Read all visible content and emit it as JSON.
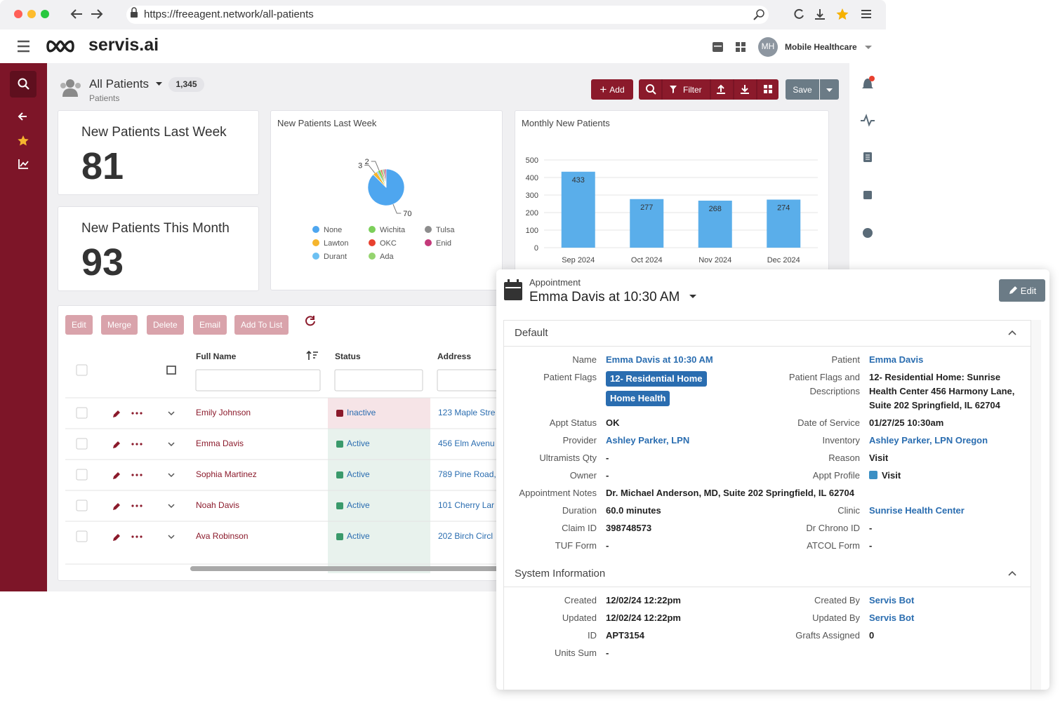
{
  "browser": {
    "url": "https://freeagent.network/all-patients"
  },
  "app": {
    "logo": "servis.ai",
    "avatar": "MH",
    "org": "Mobile Healthcare"
  },
  "header": {
    "title": "All Patients",
    "count": "1,345",
    "subtitle": "Patients"
  },
  "toolbar": {
    "add": "Add",
    "filter": "Filter",
    "save": "Save"
  },
  "cards": [
    {
      "title": "New Patients Last Week",
      "value": "81"
    },
    {
      "title": "New Patients This Month",
      "value": "93"
    }
  ],
  "chart_data": [
    {
      "type": "pie",
      "title": "New Patients Last Week",
      "categories": [
        "None",
        "Lawton",
        "Durant",
        "Wichita",
        "OKC",
        "Ada",
        "Tulsa",
        "Enid"
      ],
      "values": [
        70,
        3,
        1,
        2,
        1,
        1,
        1,
        1
      ],
      "colors": [
        "#4ea6ef",
        "#f5b52e",
        "#6cc0f2",
        "#7ccf5a",
        "#e8402f",
        "#95d46f",
        "#8d8d8d",
        "#c43a7a"
      ]
    },
    {
      "type": "bar",
      "title": "Monthly New Patients",
      "categories": [
        "Sep 2024",
        "Oct 2024",
        "Nov 2024",
        "Dec 2024"
      ],
      "values": [
        433,
        277,
        268,
        274
      ],
      "color": "#5aaeea",
      "ylim": [
        0,
        500
      ],
      "yticks": [
        0,
        100,
        200,
        300,
        400,
        500
      ],
      "grid": true
    }
  ],
  "table": {
    "actions": [
      "Edit",
      "Merge",
      "Delete",
      "Email",
      "Add To List"
    ],
    "columns": [
      "Full Name",
      "Status",
      "Address"
    ],
    "rows": [
      {
        "name": "Emily Johnson",
        "status": "Inactive",
        "address": "123 Maple Stre"
      },
      {
        "name": "Emma Davis",
        "status": "Active",
        "address": "456 Elm Avenu"
      },
      {
        "name": "Sophia Martinez",
        "status": "Active",
        "address": "789 Pine Road,"
      },
      {
        "name": "Noah Davis",
        "status": "Active",
        "address": "101 Cherry Lar"
      },
      {
        "name": "Ava Robinson",
        "status": "Active",
        "address": "202 Birch Circl"
      }
    ]
  },
  "panel": {
    "kind": "Appointment",
    "title": "Emma Davis at 10:30 AM",
    "edit": "Edit",
    "sections": [
      {
        "title": "Default",
        "rows": [
          [
            {
              "label": "Name",
              "value": "Emma Davis at 10:30 AM",
              "link": true
            },
            {
              "label": "Patient",
              "value": "Emma Davis",
              "link": true
            }
          ],
          [
            {
              "label": "Patient Flags",
              "tags": [
                "12- Residential Home",
                "Home Health"
              ]
            },
            {
              "label": "Patient Flags and Descriptions",
              "value": "12- Residential Home: Sunrise Health Center 456 Harmony Lane, Suite 202 Springfield, IL 62704"
            }
          ],
          [
            {
              "label": "Appt Status",
              "value": "OK"
            },
            {
              "label": "Date of Service",
              "value": "01/27/25 10:30am"
            }
          ],
          [
            {
              "label": "Provider",
              "value": "Ashley Parker, LPN",
              "link": true
            },
            {
              "label": "Inventory",
              "value": "Ashley Parker, LPN Oregon",
              "link": true
            }
          ],
          [
            {
              "label": "Ultramists Qty",
              "value": "-"
            },
            {
              "label": "Reason",
              "value": "Visit"
            }
          ],
          [
            {
              "label": "Owner",
              "value": "-"
            },
            {
              "label": "Appt Profile",
              "value": "Visit",
              "swatch": "#3a8fc4"
            }
          ],
          [
            {
              "label": "Appointment Notes",
              "value": "Dr. Michael Anderson, MD, Suite 202 Springfield, IL 62704"
            }
          ],
          [
            {
              "label": "Duration",
              "value": "60.0 minutes"
            },
            {
              "label": "Clinic",
              "value": "Sunrise Health Center",
              "link": true
            }
          ],
          [
            {
              "label": "Claim ID",
              "value": "398748573"
            },
            {
              "label": "Dr Chrono ID",
              "value": "-"
            }
          ],
          [
            {
              "label": "TUF Form",
              "value": "-"
            },
            {
              "label": "ATCOL Form",
              "value": "-"
            }
          ]
        ]
      },
      {
        "title": "System Information",
        "rows": [
          [
            {
              "label": "Created",
              "value": "12/02/24 12:22pm"
            },
            {
              "label": "Created By",
              "value": "Servis Bot",
              "link": true
            }
          ],
          [
            {
              "label": "Updated",
              "value": "12/02/24 12:22pm"
            },
            {
              "label": "Updated By",
              "value": "Servis Bot",
              "link": true
            }
          ],
          [
            {
              "label": "ID",
              "value": "APT3154"
            },
            {
              "label": "Grafts Assigned",
              "value": "0"
            }
          ],
          [
            {
              "label": "Units Sum",
              "value": "-"
            }
          ]
        ]
      }
    ]
  }
}
